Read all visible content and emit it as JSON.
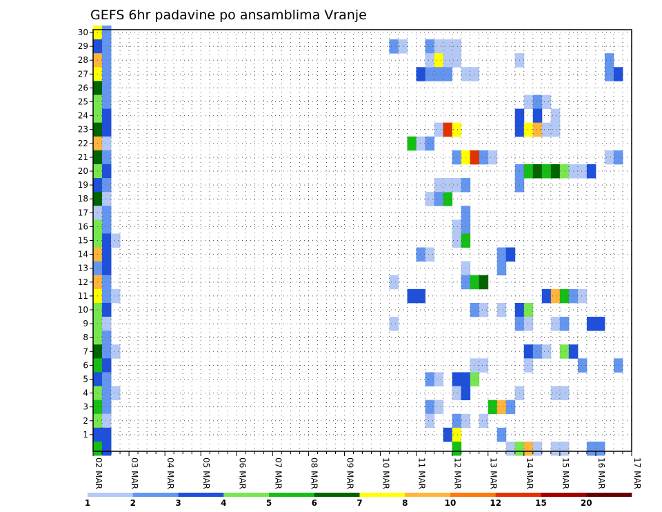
{
  "chart_data": {
    "type": "heatmap",
    "title": "GEFS 6hr padavine po ansamblima Vranje",
    "xlabel": "",
    "ylabel": "",
    "x_tick_labels": [
      "02 MAR",
      "03 MAR",
      "04 MAR",
      "05 MAR",
      "06 MAR",
      "07 MAR",
      "08 MAR",
      "09 MAR",
      "10 MAR",
      "11 MAR",
      "12 MAR",
      "13 MAR",
      "14 MAR",
      "15 MAR",
      "16 MAR",
      "17 MAR"
    ],
    "y_tick_labels": [
      "1",
      "2",
      "3",
      "4",
      "5",
      "6",
      "7",
      "8",
      "9",
      "10",
      "11",
      "12",
      "13",
      "14",
      "15",
      "16",
      "17",
      "18",
      "19",
      "20",
      "21",
      "22",
      "23",
      "24",
      "25",
      "26",
      "27",
      "28",
      "29",
      "30"
    ],
    "ylim": [
      0,
      30
    ],
    "xlim_steps": [
      0,
      60
    ],
    "steps_per_day": 4,
    "grid": "dotted",
    "colorbar": {
      "labels": [
        "1",
        "2",
        "3",
        "4",
        "5",
        "6",
        "7",
        "8",
        "10",
        "12",
        "15",
        "20"
      ],
      "colors": [
        "#b4c8f5",
        "#6496f0",
        "#1e50dc",
        "#78e650",
        "#14be14",
        "#006400",
        "#ffff00",
        "#ffb43c",
        "#ff780a",
        "#e13200",
        "#a00000",
        "#640000"
      ]
    },
    "value_levels": [
      "lt1",
      "1-2",
      "2-3",
      "3-4",
      "4-5",
      "5-6",
      "6-7",
      "7-8",
      "8-10",
      "10-12",
      "12-15",
      "15-20"
    ],
    "cells": [
      [
        0,
        30,
        6
      ],
      [
        0,
        29,
        2
      ],
      [
        0,
        28,
        7
      ],
      [
        0,
        27,
        6
      ],
      [
        0,
        26,
        5
      ],
      [
        0,
        25,
        3
      ],
      [
        0,
        24,
        3
      ],
      [
        0,
        23,
        5
      ],
      [
        0,
        22,
        7
      ],
      [
        0,
        21,
        5
      ],
      [
        0,
        20,
        3
      ],
      [
        0,
        19,
        2
      ],
      [
        0,
        18,
        5
      ],
      [
        0,
        17,
        0
      ],
      [
        0,
        16,
        3
      ],
      [
        0,
        15,
        3
      ],
      [
        0,
        14,
        7
      ],
      [
        0,
        13,
        1
      ],
      [
        0,
        12,
        7
      ],
      [
        0,
        11,
        6
      ],
      [
        0,
        10,
        3
      ],
      [
        0,
        9,
        3
      ],
      [
        0,
        8,
        3
      ],
      [
        0,
        7,
        5
      ],
      [
        0,
        6,
        4
      ],
      [
        0,
        5,
        2
      ],
      [
        0,
        4,
        3
      ],
      [
        0,
        3,
        4
      ],
      [
        0,
        2,
        3
      ],
      [
        0,
        1,
        2
      ],
      [
        0,
        0,
        4
      ],
      [
        1,
        30,
        1
      ],
      [
        1,
        29,
        1
      ],
      [
        1,
        28,
        1
      ],
      [
        1,
        27,
        1
      ],
      [
        1,
        26,
        1
      ],
      [
        1,
        25,
        1
      ],
      [
        1,
        24,
        2
      ],
      [
        1,
        23,
        2
      ],
      [
        1,
        22,
        0
      ],
      [
        1,
        21,
        1
      ],
      [
        1,
        20,
        2
      ],
      [
        1,
        19,
        1
      ],
      [
        1,
        18,
        0
      ],
      [
        1,
        17,
        1
      ],
      [
        1,
        16,
        1
      ],
      [
        1,
        15,
        2
      ],
      [
        1,
        14,
        2
      ],
      [
        1,
        13,
        2
      ],
      [
        1,
        12,
        1
      ],
      [
        1,
        11,
        1
      ],
      [
        1,
        10,
        2
      ],
      [
        1,
        9,
        0
      ],
      [
        1,
        8,
        1
      ],
      [
        1,
        7,
        1
      ],
      [
        1,
        6,
        2
      ],
      [
        1,
        5,
        1
      ],
      [
        1,
        4,
        1
      ],
      [
        1,
        3,
        1
      ],
      [
        1,
        2,
        0
      ],
      [
        1,
        1,
        2
      ],
      [
        1,
        0,
        2
      ],
      [
        2,
        15,
        0
      ],
      [
        2,
        11,
        0
      ],
      [
        2,
        7,
        0
      ],
      [
        2,
        4,
        0
      ],
      [
        33,
        29,
        1
      ],
      [
        34,
        29,
        0
      ],
      [
        33,
        12,
        0
      ],
      [
        33,
        9,
        0
      ],
      [
        35,
        22,
        4
      ],
      [
        35,
        11,
        2
      ],
      [
        36,
        22,
        0
      ],
      [
        36,
        14,
        1
      ],
      [
        36,
        11,
        2
      ],
      [
        37,
        22,
        1
      ],
      [
        37,
        14,
        0
      ],
      [
        36,
        27,
        2
      ],
      [
        37,
        27,
        1
      ],
      [
        37,
        29,
        1
      ],
      [
        37,
        28,
        0
      ],
      [
        37,
        18,
        0
      ],
      [
        37,
        5,
        1
      ],
      [
        37,
        3,
        1
      ],
      [
        37,
        2,
        0
      ],
      [
        38,
        29,
        0
      ],
      [
        38,
        28,
        6
      ],
      [
        38,
        27,
        1
      ],
      [
        38,
        23,
        0
      ],
      [
        38,
        19,
        0
      ],
      [
        38,
        18,
        1
      ],
      [
        38,
        5,
        0
      ],
      [
        38,
        3,
        0
      ],
      [
        39,
        29,
        0
      ],
      [
        39,
        28,
        0
      ],
      [
        39,
        27,
        1
      ],
      [
        39,
        23,
        9
      ],
      [
        39,
        18,
        4
      ],
      [
        39,
        19,
        0
      ],
      [
        39,
        1,
        2
      ],
      [
        40,
        29,
        0
      ],
      [
        40,
        28,
        0
      ],
      [
        40,
        23,
        6
      ],
      [
        40,
        21,
        1
      ],
      [
        40,
        19,
        0
      ],
      [
        40,
        16,
        0
      ],
      [
        40,
        15,
        0
      ],
      [
        40,
        5,
        2
      ],
      [
        40,
        4,
        0
      ],
      [
        40,
        2,
        1
      ],
      [
        40,
        1,
        6
      ],
      [
        40,
        0,
        4
      ],
      [
        41,
        27,
        0
      ],
      [
        41,
        21,
        6
      ],
      [
        41,
        19,
        1
      ],
      [
        41,
        17,
        1
      ],
      [
        41,
        16,
        1
      ],
      [
        41,
        15,
        4
      ],
      [
        41,
        13,
        0
      ],
      [
        41,
        12,
        1
      ],
      [
        41,
        5,
        2
      ],
      [
        41,
        4,
        2
      ],
      [
        41,
        2,
        0
      ],
      [
        42,
        27,
        0
      ],
      [
        42,
        21,
        9
      ],
      [
        42,
        12,
        4
      ],
      [
        42,
        10,
        1
      ],
      [
        42,
        6,
        0
      ],
      [
        42,
        5,
        3
      ],
      [
        43,
        21,
        1
      ],
      [
        43,
        12,
        5
      ],
      [
        43,
        10,
        0
      ],
      [
        43,
        6,
        0
      ],
      [
        43,
        2,
        0
      ],
      [
        44,
        21,
        0
      ],
      [
        44,
        3,
        4
      ],
      [
        45,
        14,
        1
      ],
      [
        45,
        13,
        1
      ],
      [
        45,
        10,
        0
      ],
      [
        45,
        3,
        7
      ],
      [
        45,
        1,
        1
      ],
      [
        46,
        14,
        2
      ],
      [
        46,
        3,
        1
      ],
      [
        46,
        0,
        0
      ],
      [
        47,
        28,
        0
      ],
      [
        47,
        24,
        2
      ],
      [
        47,
        23,
        2
      ],
      [
        47,
        20,
        1
      ],
      [
        47,
        19,
        1
      ],
      [
        47,
        10,
        2
      ],
      [
        47,
        9,
        1
      ],
      [
        47,
        4,
        0
      ],
      [
        47,
        0,
        3
      ],
      [
        48,
        25,
        0
      ],
      [
        48,
        23,
        6
      ],
      [
        48,
        20,
        4
      ],
      [
        48,
        10,
        3
      ],
      [
        48,
        9,
        0
      ],
      [
        48,
        7,
        2
      ],
      [
        48,
        6,
        0
      ],
      [
        48,
        0,
        7
      ],
      [
        49,
        25,
        1
      ],
      [
        49,
        24,
        2
      ],
      [
        49,
        23,
        7
      ],
      [
        49,
        20,
        5
      ],
      [
        49,
        7,
        1
      ],
      [
        49,
        0,
        0
      ],
      [
        50,
        25,
        0
      ],
      [
        50,
        23,
        0
      ],
      [
        50,
        20,
        4
      ],
      [
        50,
        11,
        2
      ],
      [
        50,
        7,
        0
      ],
      [
        51,
        24,
        0
      ],
      [
        51,
        23,
        0
      ],
      [
        51,
        20,
        5
      ],
      [
        51,
        11,
        7
      ],
      [
        51,
        9,
        0
      ],
      [
        51,
        4,
        0
      ],
      [
        51,
        0,
        0
      ],
      [
        52,
        20,
        3
      ],
      [
        52,
        11,
        4
      ],
      [
        52,
        9,
        1
      ],
      [
        52,
        7,
        3
      ],
      [
        52,
        4,
        0
      ],
      [
        52,
        0,
        0
      ],
      [
        53,
        20,
        0
      ],
      [
        53,
        11,
        1
      ],
      [
        53,
        7,
        2
      ],
      [
        54,
        20,
        0
      ],
      [
        54,
        11,
        0
      ],
      [
        54,
        6,
        1
      ],
      [
        55,
        20,
        2
      ],
      [
        55,
        9,
        2
      ],
      [
        55,
        0,
        1
      ],
      [
        56,
        9,
        2
      ],
      [
        56,
        0,
        1
      ],
      [
        57,
        28,
        1
      ],
      [
        57,
        27,
        1
      ],
      [
        57,
        21,
        0
      ],
      [
        58,
        27,
        2
      ],
      [
        58,
        21,
        1
      ],
      [
        58,
        6,
        1
      ]
    ]
  }
}
